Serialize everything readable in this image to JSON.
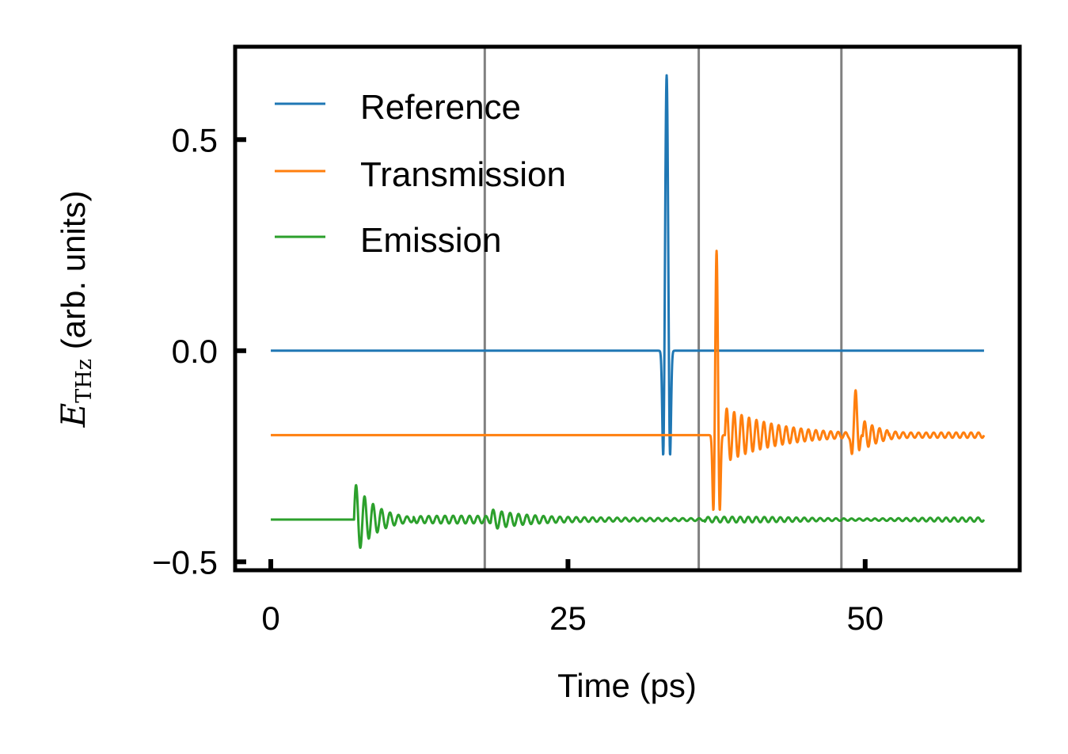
{
  "chart_data": {
    "type": "line",
    "xlabel": "Time (ps)",
    "ylabel_symbol": "E",
    "ylabel_subscript": "THz",
    "ylabel_rest": " (arb. units)",
    "xlim": [
      -3,
      63
    ],
    "ylim": [
      -0.52,
      0.72
    ],
    "xticks": [
      0,
      25,
      50
    ],
    "xtick_labels": [
      "0",
      "25",
      "50"
    ],
    "yticks": [
      -0.5,
      0.0,
      0.5
    ],
    "ytick_labels": [
      "−0.5",
      "0.0",
      "0.5"
    ],
    "vlines": [
      18,
      36,
      48
    ],
    "vline_color": "#808080",
    "grid": false,
    "legend_position": "upper-left",
    "series": [
      {
        "name": "Reference",
        "color": "#1f77b4",
        "offset": 0.0,
        "description": "flat at 0, single sharp pulse near 33 ps peaking at 0.66 with dips to -0.29",
        "x_range": [
          0,
          60
        ],
        "pulses": [
          {
            "t0": 33.3,
            "amplitude": 0.66,
            "min": -0.29
          }
        ]
      },
      {
        "name": "Transmission",
        "color": "#ff7f0e",
        "offset": -0.2,
        "description": "baseline -0.2, main pulse near 37.5 ps peaking at 0.24 and dipping to -0.39, ringing afterwards, echo near 49 ps reaching -0.09",
        "x_range": [
          0,
          60
        ],
        "pulses": [
          {
            "t0": 37.5,
            "amplitude": 0.24,
            "min": -0.39
          },
          {
            "t0": 49.2,
            "amplitude": -0.09,
            "min": -0.25
          }
        ]
      },
      {
        "name": "Emission",
        "color": "#2ca02c",
        "offset": -0.4,
        "description": "baseline -0.4, oscillation burst starting near 7 ps with peaks -0.32 and troughs -0.46, decaying ringing to the end",
        "x_range": [
          0,
          60
        ],
        "pulses": [
          {
            "t0": 7.5,
            "amplitude": -0.32,
            "min": -0.46
          }
        ]
      }
    ]
  }
}
